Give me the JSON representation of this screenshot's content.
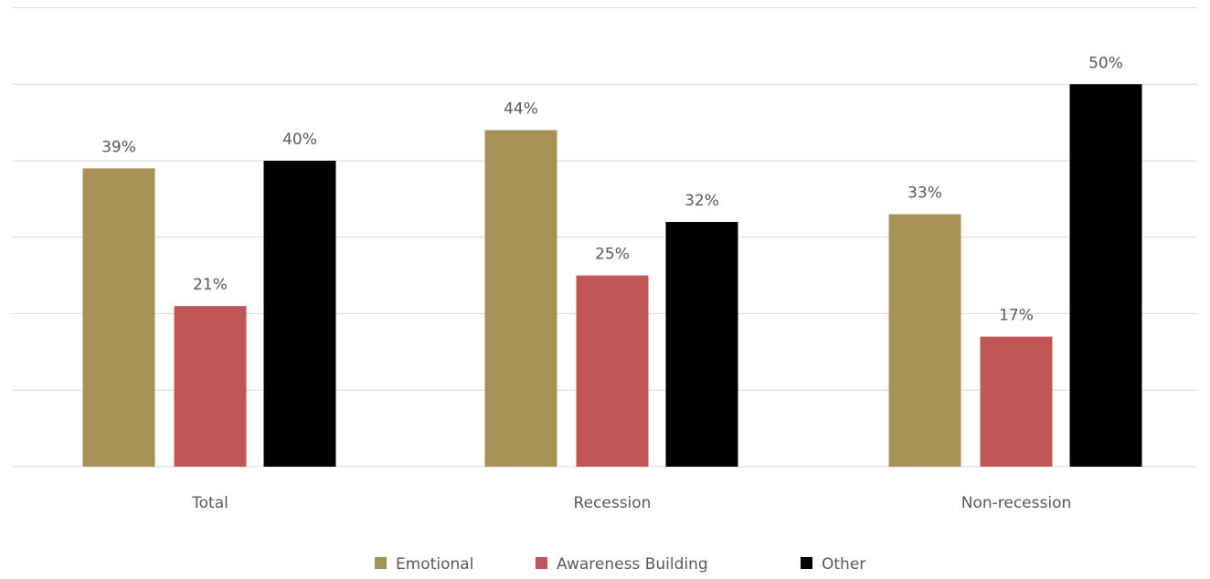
{
  "chart_data": {
    "type": "bar",
    "title": "",
    "xlabel": "",
    "ylabel": "",
    "categories": [
      "Total",
      "Recession",
      "Non-recession"
    ],
    "series": [
      {
        "name": "Emotional",
        "color": "#a79157",
        "values": [
          39,
          44,
          33
        ],
        "labels": [
          "39%",
          "44%",
          "33%"
        ]
      },
      {
        "name": "Awareness Building",
        "color": "#c05756",
        "values": [
          21,
          25,
          17
        ],
        "labels": [
          "21%",
          "25%",
          "17%"
        ]
      },
      {
        "name": "Other",
        "color": "#000000",
        "values": [
          40,
          32,
          50
        ],
        "labels": [
          "40%",
          "32%",
          "50%"
        ]
      }
    ],
    "ylim": [
      0,
      60
    ],
    "grid": true,
    "legend": "bottom"
  }
}
